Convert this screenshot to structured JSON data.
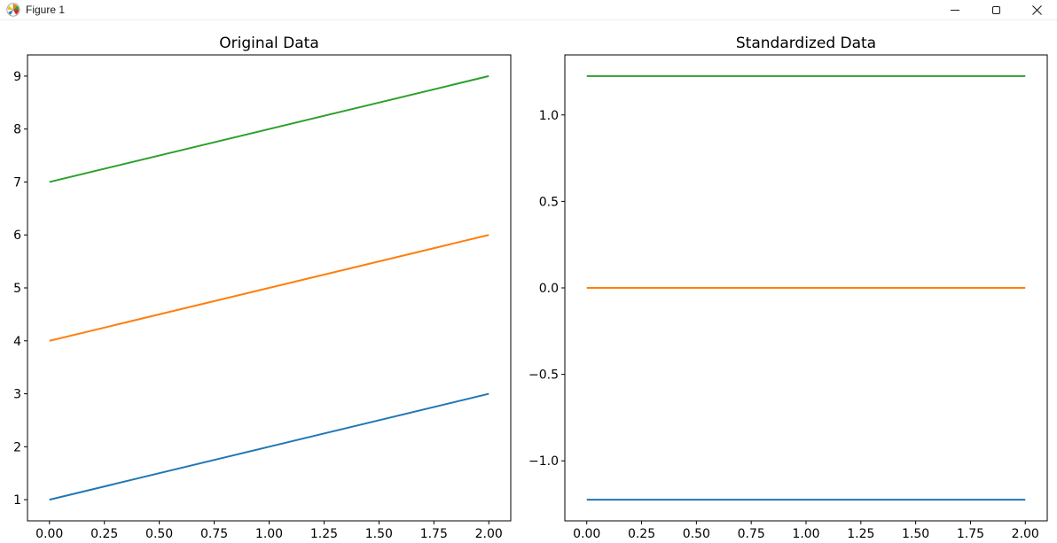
{
  "window": {
    "title": "Figure 1",
    "controls": {
      "minimize": "minimize",
      "maximize": "maximize",
      "close": "close"
    }
  },
  "chart_data": [
    {
      "type": "line",
      "title": "Original Data",
      "xlabel": "",
      "ylabel": "",
      "grid": false,
      "legend": "none",
      "x": [
        0,
        1,
        2
      ],
      "series": [
        {
          "name": "blue-series",
          "color": "#1f77b4",
          "values": [
            1,
            2,
            3
          ]
        },
        {
          "name": "orange-series",
          "color": "#ff7f0e",
          "values": [
            4,
            5,
            6
          ]
        },
        {
          "name": "green-series",
          "color": "#2ca02c",
          "values": [
            7,
            8,
            9
          ]
        }
      ],
      "xlim": [
        -0.1,
        2.1
      ],
      "ylim": [
        0.6,
        9.4
      ],
      "xtick_values": [
        0,
        0.25,
        0.5,
        0.75,
        1,
        1.25,
        1.5,
        1.75,
        2
      ],
      "xtick_labels": [
        "0.00",
        "0.25",
        "0.50",
        "0.75",
        "1.00",
        "1.25",
        "1.50",
        "1.75",
        "2.00"
      ],
      "ytick_values": [
        1,
        2,
        3,
        4,
        5,
        6,
        7,
        8,
        9
      ],
      "ytick_labels": [
        "1",
        "2",
        "3",
        "4",
        "5",
        "6",
        "7",
        "8",
        "9"
      ]
    },
    {
      "type": "line",
      "title": "Standardized Data",
      "xlabel": "",
      "ylabel": "",
      "grid": false,
      "legend": "none",
      "x": [
        0,
        1,
        2
      ],
      "series": [
        {
          "name": "blue-series",
          "color": "#1f77b4",
          "values": [
            -1.2247,
            -1.2247,
            -1.2247
          ]
        },
        {
          "name": "orange-series",
          "color": "#ff7f0e",
          "values": [
            0,
            0,
            0
          ]
        },
        {
          "name": "green-series",
          "color": "#2ca02c",
          "values": [
            1.2247,
            1.2247,
            1.2247
          ]
        }
      ],
      "xlim": [
        -0.1,
        2.1
      ],
      "ylim": [
        -1.347,
        1.347
      ],
      "xtick_values": [
        0,
        0.25,
        0.5,
        0.75,
        1,
        1.25,
        1.5,
        1.75,
        2
      ],
      "xtick_labels": [
        "0.00",
        "0.25",
        "0.50",
        "0.75",
        "1.00",
        "1.25",
        "1.50",
        "1.75",
        "2.00"
      ],
      "ytick_values": [
        -1.0,
        -0.5,
        0.0,
        0.5,
        1.0
      ],
      "ytick_labels": [
        "−1.0",
        "−0.5",
        "0.0",
        "0.5",
        "1.0"
      ]
    }
  ],
  "colors": {
    "line_blue": "#1f77b4",
    "line_orange": "#ff7f0e",
    "line_green": "#2ca02c",
    "spine": "#000000",
    "background": "#ffffff"
  }
}
